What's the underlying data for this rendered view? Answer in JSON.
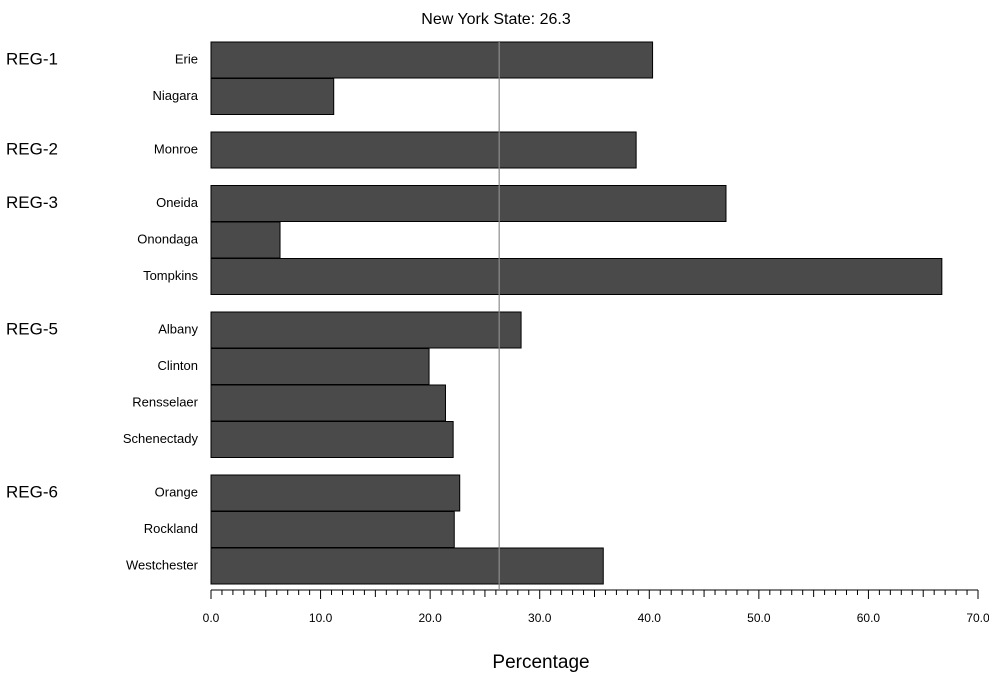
{
  "chart_data": {
    "type": "bar",
    "orientation": "horizontal",
    "title": "New York State:  26.3",
    "reference_value": 26.3,
    "xlabel": "Percentage",
    "xlim": [
      0,
      70
    ],
    "x_ticks": [
      "0.0",
      "10.0",
      "20.0",
      "30.0",
      "40.0",
      "50.0",
      "60.0",
      "70.0"
    ],
    "bar_color": "#4a4a4a",
    "reference_line_color": "#8c8c8c",
    "groups": [
      {
        "region": "REG-1",
        "counties": [
          {
            "name": "Erie",
            "value": 40.3
          },
          {
            "name": "Niagara",
            "value": 11.2
          }
        ]
      },
      {
        "region": "REG-2",
        "counties": [
          {
            "name": "Monroe",
            "value": 38.8
          }
        ]
      },
      {
        "region": "REG-3",
        "counties": [
          {
            "name": "Oneida",
            "value": 47.0
          },
          {
            "name": "Onondaga",
            "value": 6.3
          },
          {
            "name": "Tompkins",
            "value": 66.7
          }
        ]
      },
      {
        "region": "REG-5",
        "counties": [
          {
            "name": "Albany",
            "value": 28.3
          },
          {
            "name": "Clinton",
            "value": 19.9
          },
          {
            "name": "Rensselaer",
            "value": 21.4
          },
          {
            "name": "Schenectady",
            "value": 22.1
          }
        ]
      },
      {
        "region": "REG-6",
        "counties": [
          {
            "name": "Orange",
            "value": 22.7
          },
          {
            "name": "Rockland",
            "value": 22.2
          },
          {
            "name": "Westchester",
            "value": 35.8
          }
        ]
      }
    ]
  }
}
